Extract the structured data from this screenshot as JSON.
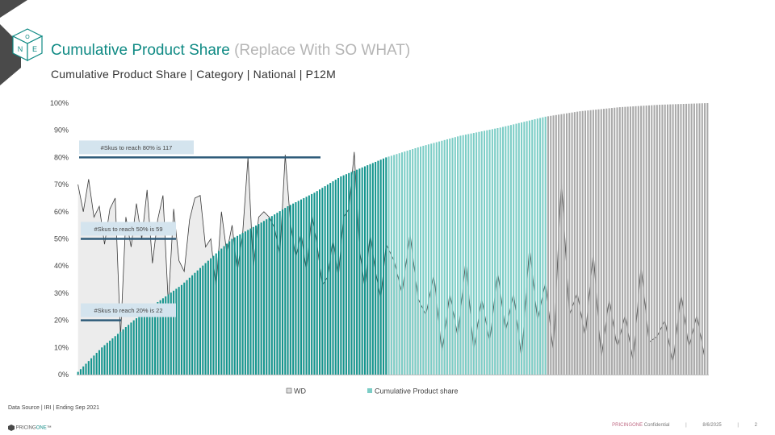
{
  "header": {
    "title": "Cumulative Product Share",
    "title_note": "(Replace With SO WHAT)",
    "subtitle": "Cumulative Product Share | Category | National | P12M",
    "logo_letters": [
      "O",
      "N",
      "E"
    ]
  },
  "footer": {
    "source": "Data Source | IRI | Ending Sep 2021",
    "brand_prefix": "PRICING",
    "brand_suffix": "ONE",
    "brand_tm": "™",
    "confidential_brand": "PRICINGONE",
    "confidential_label": "Confidential",
    "date": "8/6/2025",
    "page": "2"
  },
  "colors": {
    "accent": "#0f8a84",
    "bar_top": "#14958e",
    "bar_mid": "#7ccdc6",
    "bar_tail": "#a9a9a9",
    "wd_fill": "#dcdcdc",
    "annotation_box": "#d4e4ee",
    "annotation_line": "#2e5b7a"
  },
  "chart_data": {
    "type": "bar",
    "sku_count": 238,
    "y_axis": {
      "ylim": [
        0,
        100
      ],
      "ticks": [
        "0%",
        "10%",
        "20%",
        "30%",
        "40%",
        "50%",
        "60%",
        "70%",
        "80%",
        "90%",
        "100%"
      ]
    },
    "legend": {
      "position": "bottom",
      "entries": [
        "WD",
        "Cumulative Product share"
      ]
    },
    "color_segments": [
      {
        "from_sku": 1,
        "to_sku": 117,
        "color": "#14958e"
      },
      {
        "from_sku": 118,
        "to_sku": 177,
        "color": "#7ccdc6"
      },
      {
        "from_sku": 178,
        "to_sku": 238,
        "color": "#a9a9a9"
      }
    ],
    "series": [
      {
        "name": "Cumulative Product share",
        "kind": "bar",
        "x": [
          1,
          10,
          22,
          30,
          40,
          59,
          70,
          80,
          90,
          100,
          117,
          130,
          145,
          160,
          177,
          190,
          205,
          220,
          238
        ],
        "y": [
          1,
          10,
          20,
          26,
          33,
          50,
          56,
          62,
          67,
          73,
          80,
          84,
          88,
          91,
          95,
          97,
          98.5,
          99.4,
          100
        ]
      },
      {
        "name": "WD",
        "kind": "area",
        "x": [
          1,
          3,
          5,
          7,
          9,
          11,
          13,
          15,
          17,
          19,
          21,
          23,
          25,
          27,
          29,
          31,
          33,
          35,
          37,
          39,
          41,
          43,
          45,
          47,
          49,
          51,
          53,
          55,
          57,
          59,
          61,
          63,
          65,
          67,
          69,
          71,
          73,
          75,
          77,
          79,
          81,
          83,
          85,
          87,
          89,
          91,
          93,
          95,
          97,
          99,
          101,
          103,
          105,
          107,
          109,
          111,
          113,
          115,
          117,
          120,
          123,
          126,
          129,
          132,
          135,
          138,
          141,
          144,
          147,
          150,
          153,
          156,
          159,
          162,
          165,
          168,
          171,
          174,
          177,
          180,
          183,
          186,
          189,
          192,
          195,
          198,
          201,
          204,
          207,
          210,
          213,
          216,
          219,
          222,
          225,
          228,
          231,
          234,
          237
        ],
        "y": [
          70,
          60,
          72,
          58,
          62,
          48,
          61,
          65,
          14,
          58,
          47,
          63,
          50,
          68,
          41,
          57,
          66,
          26,
          61,
          42,
          38,
          57,
          65,
          66,
          47,
          50,
          32,
          60,
          45,
          55,
          38,
          52,
          80,
          39,
          58,
          60,
          58,
          54,
          44,
          81,
          56,
          43,
          52,
          38,
          59,
          48,
          33,
          36,
          50,
          36,
          58,
          61,
          82,
          46,
          32,
          52,
          38,
          28,
          48,
          42,
          30,
          52,
          28,
          22,
          37,
          8,
          30,
          14,
          42,
          9,
          28,
          12,
          38,
          16,
          30,
          6,
          47,
          20,
          34,
          8,
          72,
          22,
          30,
          14,
          45,
          6,
          28,
          10,
          22,
          5,
          40,
          12,
          14,
          20,
          4,
          30,
          10,
          22,
          6
        ]
      }
    ],
    "annotations": [
      {
        "label": "#Skus to reach 80% is 117",
        "value": 80
      },
      {
        "label": "#Skus to reach 50% is 59",
        "value": 50
      },
      {
        "label": "#Skus to reach 20% is 22",
        "value": 20
      }
    ]
  }
}
